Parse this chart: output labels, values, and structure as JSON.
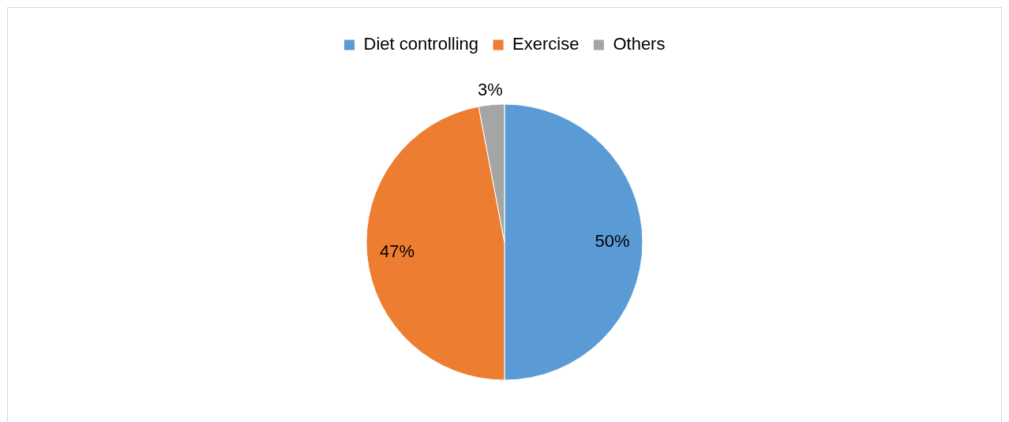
{
  "chart_data": {
    "type": "pie",
    "categories": [
      "Diet controlling",
      "Exercise",
      "Others"
    ],
    "values": [
      50,
      47,
      3
    ],
    "colors": [
      "#5b9bd5",
      "#ed7d31",
      "#a5a5a5"
    ],
    "value_labels": [
      "50%",
      "47%",
      "3%"
    ],
    "legend": "top"
  }
}
